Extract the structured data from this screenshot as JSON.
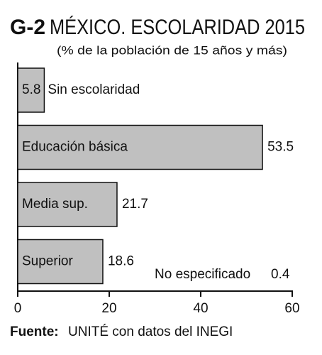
{
  "chart_data": {
    "type": "hbar",
    "chart_id": "G-2",
    "title": "MÉXICO. ESCOLARIDAD 2015",
    "subtitle": "(% de la población de 15 años y más)",
    "categories": [
      "Sin escolaridad",
      "Educación básica",
      "Media sup.",
      "Superior"
    ],
    "values": [
      5.8,
      53.5,
      21.7,
      18.6
    ],
    "color": "#c0c0c0",
    "xlim": [
      0,
      60
    ],
    "xticks": [
      0,
      20,
      40,
      60
    ],
    "annotation": {
      "label": "No especificado",
      "value": 0.4
    },
    "source_label": "Fuente:",
    "source": "UNITÉ con datos del INEGI"
  }
}
